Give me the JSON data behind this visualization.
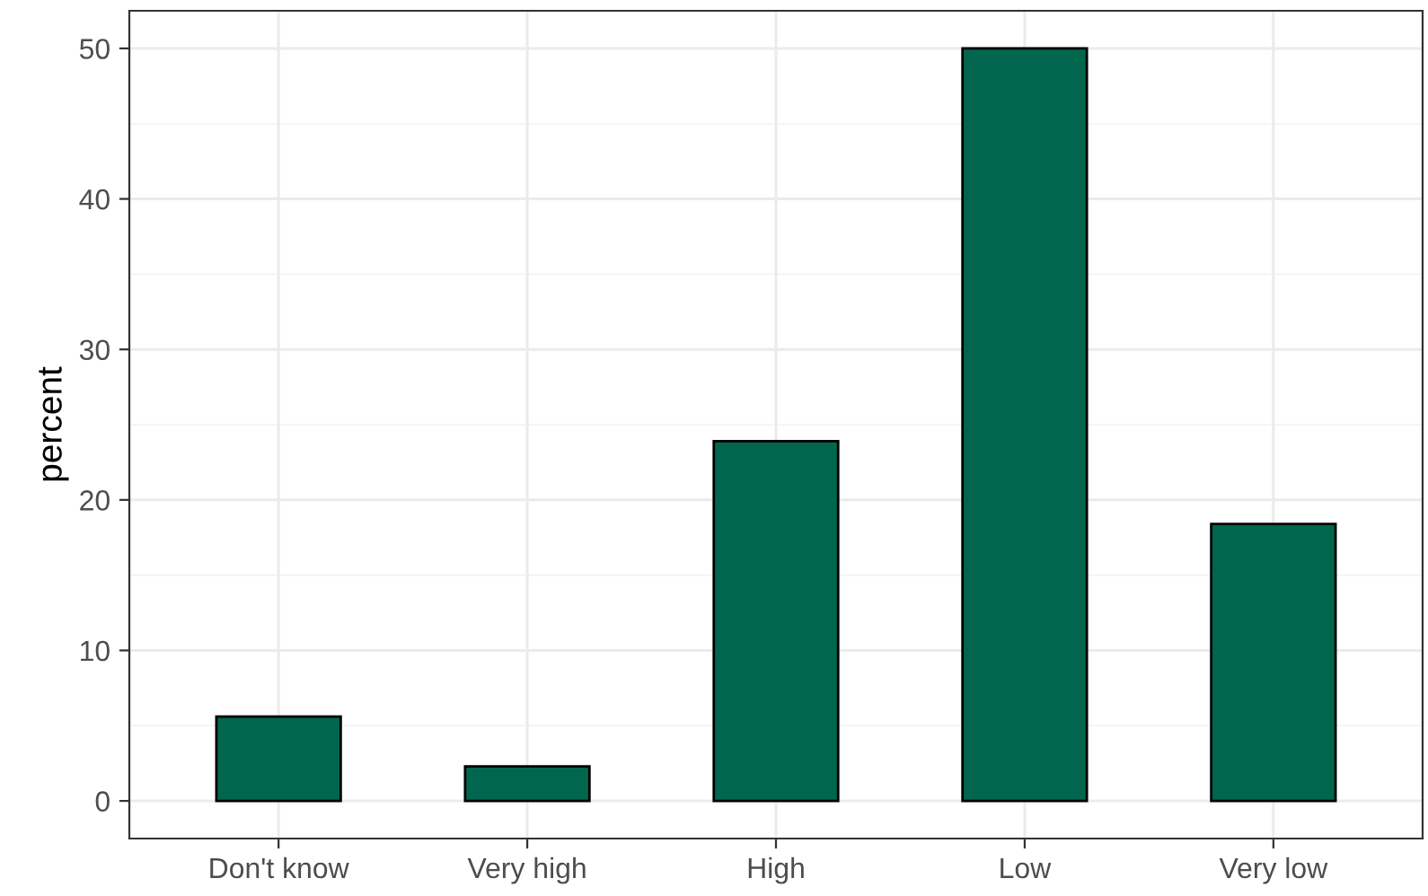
{
  "chart_data": {
    "type": "bar",
    "ylabel": "percent",
    "categories": [
      "Don't know",
      "Very high",
      "High",
      "Low",
      "Very low"
    ],
    "values": [
      5.6,
      2.3,
      23.9,
      50.0,
      18.4
    ],
    "color": "#02664e",
    "ylim": [
      -2.5,
      52.5
    ],
    "yticks": [
      0,
      10,
      20,
      30,
      40,
      50
    ],
    "grid": true
  }
}
